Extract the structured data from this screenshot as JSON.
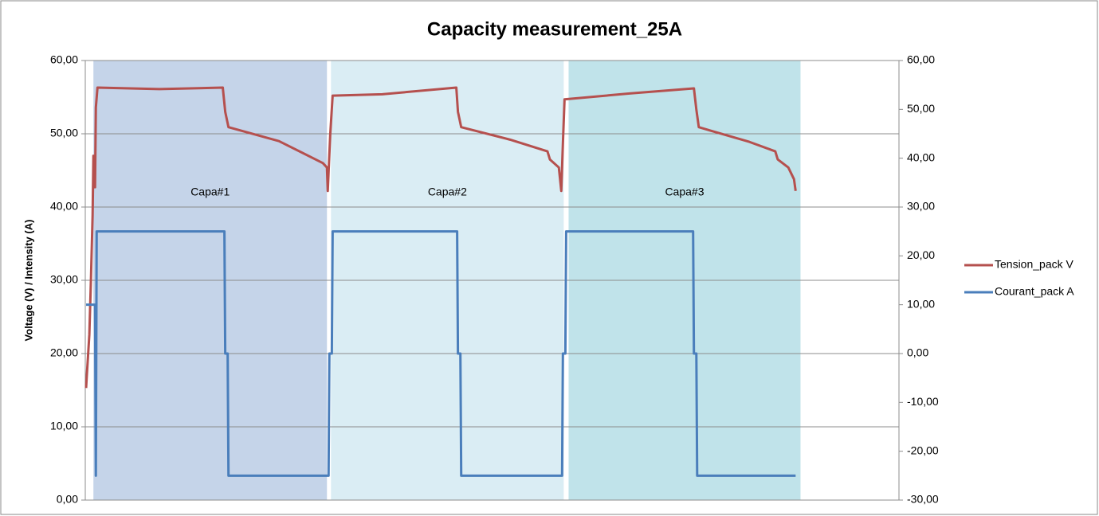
{
  "chart_data": {
    "type": "line",
    "title": "Capacity measurement_25A",
    "ylabel": "Voltage (V)  / Intensity (A)",
    "xlim": [
      0,
      1000
    ],
    "ylim": [
      0,
      60
    ],
    "yticks": [
      {
        "value": 0,
        "label": "0,00"
      },
      {
        "value": 10,
        "label": "10,00"
      },
      {
        "value": 20,
        "label": "20,00"
      },
      {
        "value": 30,
        "label": "30,00"
      },
      {
        "value": 40,
        "label": "40,00"
      },
      {
        "value": 50,
        "label": "50,00"
      },
      {
        "value": 60,
        "label": "60,00"
      }
    ],
    "y2lim": [
      -30,
      60
    ],
    "y2ticks": [
      {
        "value": -30,
        "label": "-30,00"
      },
      {
        "value": -20,
        "label": "-20,00"
      },
      {
        "value": -10,
        "label": "-10,00"
      },
      {
        "value": 0,
        "label": "0,00"
      },
      {
        "value": 10,
        "label": "10,00"
      },
      {
        "value": 20,
        "label": "20,00"
      },
      {
        "value": 30,
        "label": "30,00"
      },
      {
        "value": 40,
        "label": "40,00"
      },
      {
        "value": 50,
        "label": "50,00"
      },
      {
        "value": 60,
        "label": "60,00"
      }
    ],
    "grid": true,
    "legend": "right",
    "bands": [
      {
        "label": "Capa#1",
        "x": [
          10,
          297
        ],
        "color": "#c5d4e9"
      },
      {
        "label": "Capa#2",
        "x": [
          302,
          588
        ],
        "color": "#daedf4"
      },
      {
        "label": "Capa#3",
        "x": [
          594,
          879
        ],
        "color": "#c0e3ea"
      }
    ],
    "series": [
      {
        "name": "Tension_pack V",
        "color": "#b5504e",
        "axis": "y",
        "x": [
          1,
          2,
          5,
          7,
          9,
          10,
          12,
          13,
          15,
          91,
          169,
          172,
          176,
          238,
          292,
          297,
          298,
          301,
          304,
          365,
          456,
          458,
          462,
          522,
          568,
          571,
          582,
          585,
          587,
          589,
          669,
          748,
          751,
          754,
          816,
          848,
          851,
          864,
          871,
          873
        ],
        "values": [
          15.3,
          17.2,
          22.6,
          30.2,
          38.9,
          47.0,
          42.7,
          53.6,
          56.3,
          56.1,
          56.3,
          53.0,
          50.9,
          49.0,
          46.0,
          45.4,
          42.2,
          49.8,
          55.2,
          55.4,
          56.3,
          53.0,
          50.9,
          49.2,
          47.6,
          46.5,
          45.4,
          42.2,
          48.7,
          54.7,
          55.5,
          56.2,
          53.3,
          50.9,
          48.9,
          47.6,
          46.5,
          45.4,
          43.8,
          42.2
        ]
      },
      {
        "name": "Courant_pack A",
        "color": "#4a7ebb",
        "axis": "y2",
        "x": [
          1,
          12,
          13,
          14,
          171,
          172,
          175,
          176,
          299,
          300,
          303,
          304,
          457,
          458,
          461,
          462,
          586,
          587,
          590,
          591,
          747,
          748,
          751,
          752,
          873
        ],
        "values": [
          10,
          10,
          -25,
          25,
          25,
          0,
          0,
          -25,
          -25,
          0,
          0,
          25,
          25,
          0,
          0,
          -25,
          -25,
          0,
          0,
          25,
          25,
          0,
          0,
          -25,
          -25
        ]
      }
    ]
  }
}
